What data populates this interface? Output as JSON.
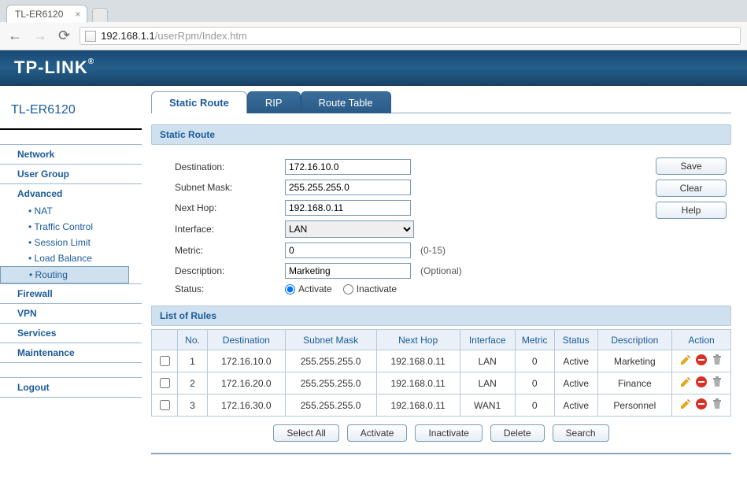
{
  "browser": {
    "tab_title": "TL-ER6120",
    "url_ip": "192.168.1.1",
    "url_path": "/userRpm/Index.htm"
  },
  "brand": "TP-LINK",
  "device_model": "TL-ER6120",
  "sidebar": {
    "network": "Network",
    "usergroup": "User Group",
    "advanced": "Advanced",
    "adv_items": {
      "nat": "NAT",
      "traffic": "Traffic Control",
      "session": "Session Limit",
      "lb": "Load Balance",
      "routing": "Routing"
    },
    "firewall": "Firewall",
    "vpn": "VPN",
    "services": "Services",
    "maintenance": "Maintenance",
    "logout": "Logout"
  },
  "page_tabs": {
    "static": "Static Route",
    "rip": "RIP",
    "table": "Route Table"
  },
  "section": {
    "static_route": "Static Route",
    "list": "List of Rules"
  },
  "form": {
    "labels": {
      "dest": "Destination:",
      "mask": "Subnet Mask:",
      "nexthop": "Next Hop:",
      "iface": "Interface:",
      "metric": "Metric:",
      "desc": "Description:",
      "status": "Status:"
    },
    "values": {
      "dest": "172.16.10.0",
      "mask": "255.255.255.0",
      "nexthop": "192.168.0.11",
      "iface": "LAN",
      "metric": "0",
      "desc": "Marketing"
    },
    "hints": {
      "metric": "(0-15)",
      "desc": "(Optional)"
    },
    "status_opts": {
      "activate": "Activate",
      "inactivate": "Inactivate"
    }
  },
  "buttons": {
    "save": "Save",
    "clear": "Clear",
    "help": "Help",
    "selectall": "Select All",
    "activate": "Activate",
    "inactivate": "Inactivate",
    "delete": "Delete",
    "search": "Search"
  },
  "table": {
    "headers": {
      "no": "No.",
      "dest": "Destination",
      "mask": "Subnet Mask",
      "nexthop": "Next Hop",
      "iface": "Interface",
      "metric": "Metric",
      "status": "Status",
      "desc": "Description",
      "action": "Action"
    },
    "rows": [
      {
        "no": "1",
        "dest": "172.16.10.0",
        "mask": "255.255.255.0",
        "nexthop": "192.168.0.11",
        "iface": "LAN",
        "metric": "0",
        "status": "Active",
        "desc": "Marketing"
      },
      {
        "no": "2",
        "dest": "172.16.20.0",
        "mask": "255.255.255.0",
        "nexthop": "192.168.0.11",
        "iface": "LAN",
        "metric": "0",
        "status": "Active",
        "desc": "Finance"
      },
      {
        "no": "3",
        "dest": "172.16.30.0",
        "mask": "255.255.255.0",
        "nexthop": "192.168.0.11",
        "iface": "WAN1",
        "metric": "0",
        "status": "Active",
        "desc": "Personnel"
      }
    ]
  },
  "colors": {
    "brandbar": "#245e8a",
    "link": "#1a5b9a",
    "panel": "#cfe0ef",
    "border": "#b5c9dd"
  }
}
